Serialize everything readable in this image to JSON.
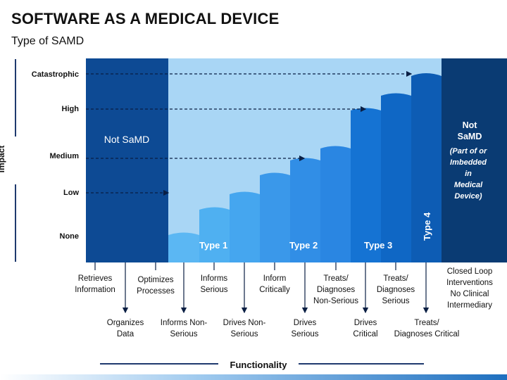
{
  "title": "SOFTWARE AS A MEDICAL DEVICE",
  "subtitle": "Type of SAMD",
  "y_axis_label": "Impact",
  "x_axis_label": "Functionality",
  "impact_levels": [
    "Catastrophic",
    "High",
    "Medium",
    "Low",
    "None"
  ],
  "not_samd_left": "Not SaMD",
  "not_samd_right": {
    "title_line1": "Not",
    "title_line2": "SaMD",
    "note": [
      "(Part of or",
      "Imbedded",
      "in",
      "Medical",
      "Device)"
    ]
  },
  "types": [
    "Type 1",
    "Type 2",
    "Type 3",
    "Type 4"
  ],
  "functions_top": [
    [
      "Retrieves",
      "Information"
    ],
    [
      "Optimizes",
      "Processes"
    ],
    [
      "Informs",
      "Serious"
    ],
    [
      "Inform",
      "Critically"
    ],
    [
      "Treats/",
      "Diagnoses",
      "Non-Serious"
    ],
    [
      "Treats/",
      "Diagnoses",
      "Serious"
    ],
    [
      "Closed Loop",
      "Interventions",
      "No Clinical",
      "Intermediary"
    ]
  ],
  "functions_bottom": [
    [
      "Organizes",
      "Data"
    ],
    [
      "Informs Non-",
      "Serious"
    ],
    [
      "Drives Non-",
      "Serious"
    ],
    [
      "Drives",
      "Serious"
    ],
    [
      "Drives",
      "Critical"
    ],
    [
      "Treats/",
      "Diagnoses Critical"
    ]
  ],
  "colors": {
    "dark_blue": "#0d4a94",
    "right_dark": "#0a3b73",
    "light_bg": "#a9d6f5",
    "step_light": "#5bb7f3",
    "step_mid": "#2d8ae6",
    "step_dark": "#0d5eb8"
  }
}
